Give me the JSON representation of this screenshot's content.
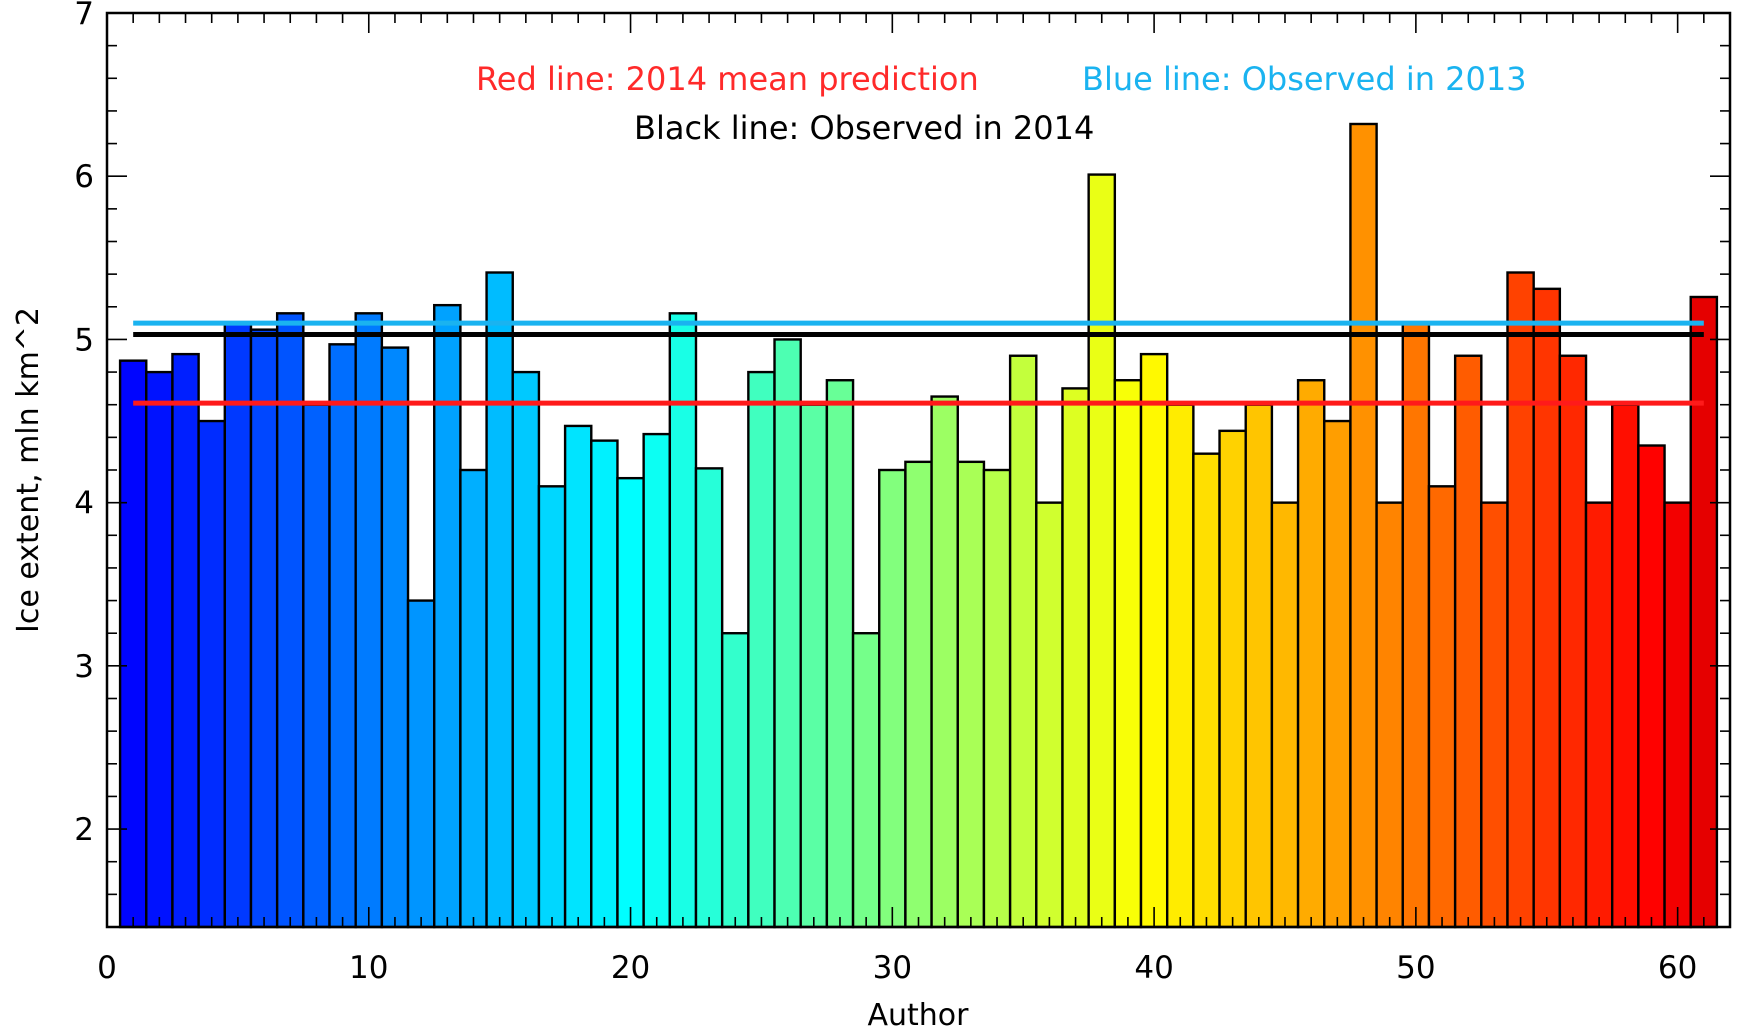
{
  "chart_data": {
    "type": "bar",
    "xlabel": "Author",
    "ylabel": "Ice extent, mln km^2",
    "xlim": [
      0,
      62
    ],
    "ylim": [
      1.4,
      7
    ],
    "x_ticks": [
      0,
      10,
      20,
      30,
      40,
      50,
      60
    ],
    "y_ticks": [
      2,
      3,
      4,
      5,
      6,
      7
    ],
    "grid": false,
    "legend_placement": "top-center",
    "bar_colormap": "blue-to-dark-red (jet)",
    "x": [
      1,
      2,
      3,
      4,
      5,
      6,
      7,
      8,
      9,
      10,
      11,
      12,
      13,
      14,
      15,
      16,
      17,
      18,
      19,
      20,
      21,
      22,
      23,
      24,
      25,
      26,
      27,
      28,
      29,
      30,
      31,
      32,
      33,
      34,
      35,
      36,
      37,
      38,
      39,
      40,
      41,
      42,
      43,
      44,
      45,
      46,
      47,
      48,
      49,
      50,
      51,
      52,
      53,
      54,
      55,
      56,
      57,
      58,
      59,
      60,
      61
    ],
    "values": [
      4.87,
      4.8,
      4.91,
      4.5,
      5.1,
      5.06,
      5.16,
      4.6,
      4.97,
      5.16,
      4.95,
      3.4,
      5.21,
      4.2,
      5.41,
      4.8,
      4.1,
      4.47,
      4.38,
      4.15,
      4.42,
      5.16,
      4.21,
      3.2,
      4.8,
      5.0,
      4.6,
      4.75,
      3.2,
      4.2,
      4.25,
      4.65,
      4.25,
      4.2,
      4.9,
      4.0,
      4.7,
      6.01,
      4.75,
      4.91,
      4.6,
      4.3,
      4.44,
      4.6,
      4.0,
      4.75,
      4.5,
      6.32,
      4.0,
      5.1,
      4.1,
      4.9,
      4.0,
      5.41,
      5.31,
      4.9,
      4.0,
      4.6,
      4.35,
      4.0,
      5.26
    ],
    "reference_lines": [
      {
        "name": "2014 mean prediction",
        "value": 4.61,
        "color": "#ff1a1a"
      },
      {
        "name": "Observed in 2013",
        "value": 5.1,
        "color": "#1ab3f0"
      },
      {
        "name": "Observed in 2014",
        "value": 5.03,
        "color": "#000000"
      }
    ],
    "legend": {
      "red": "Red line: 2014 mean prediction",
      "blue": "Blue line: Observed in 2013",
      "black": "Black line: Observed in 2014"
    }
  }
}
